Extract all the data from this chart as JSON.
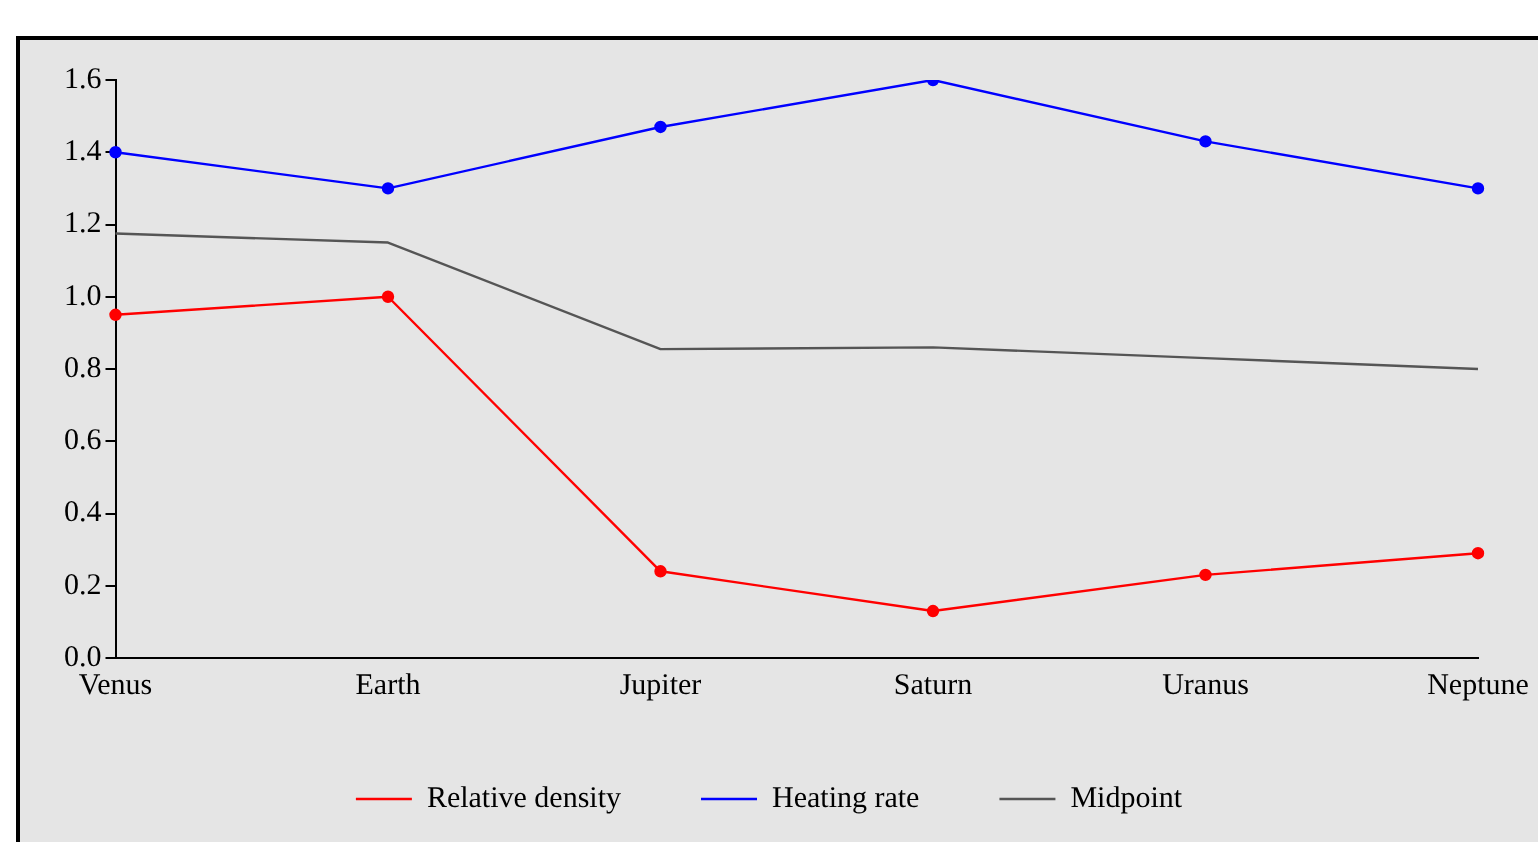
{
  "chart_data": {
    "type": "line",
    "categories": [
      "Venus",
      "Earth",
      "Jupiter",
      "Saturn",
      "Uranus",
      "Neptune"
    ],
    "series": [
      {
        "name": "Relative density",
        "color": "#ff0000",
        "marker": "circle",
        "values": [
          0.95,
          1.0,
          0.24,
          0.13,
          0.23,
          0.29
        ]
      },
      {
        "name": "Heating rate",
        "color": "#0000ff",
        "marker": "circle",
        "values": [
          1.4,
          1.3,
          1.47,
          1.6,
          1.43,
          1.3
        ]
      },
      {
        "name": "Midpoint",
        "color": "#555555",
        "marker": "none",
        "values": [
          1.175,
          1.15,
          0.855,
          0.86,
          0.83,
          0.8
        ]
      }
    ],
    "ylim": [
      0,
      1.6
    ],
    "yticks": [
      {
        "value": 0,
        "label": "0.0"
      },
      0.2,
      0.4,
      0.6,
      0.8,
      {
        "value": 1,
        "label": "1.0"
      },
      1.2,
      1.4,
      1.6
    ],
    "grid": false,
    "legend": "bottom"
  }
}
